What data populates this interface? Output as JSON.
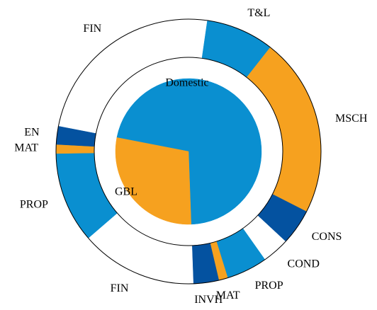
{
  "chart_data": {
    "type": "nested_pie",
    "inner": {
      "categories": [
        "Domestic",
        "GBL"
      ],
      "values": [
        71.3,
        28.6
      ],
      "colors": [
        "#0a8fd0",
        "#f6a11f"
      ]
    },
    "outer": {
      "categories": [
        "FIN",
        "T&L",
        "MSCH",
        "CONS",
        "COND",
        "PROP",
        "MAT",
        "INVH",
        "FIN",
        "PROP",
        "MAT",
        "EN"
      ],
      "values": [
        24.2,
        8.3,
        21.9,
        4.4,
        3.3,
        5.0,
        1.1,
        3.1,
        14.2,
        11.1,
        1.1,
        2.2
      ],
      "colors": [
        "#ffffff",
        "#0a8fd0",
        "#f6a11f",
        "#0452a0",
        "#ffffff",
        "#0a8fd0",
        "#f6a11f",
        "#0452a0",
        "#ffffff",
        "#0a8fd0",
        "#f6a11f",
        "#0452a0"
      ]
    }
  }
}
